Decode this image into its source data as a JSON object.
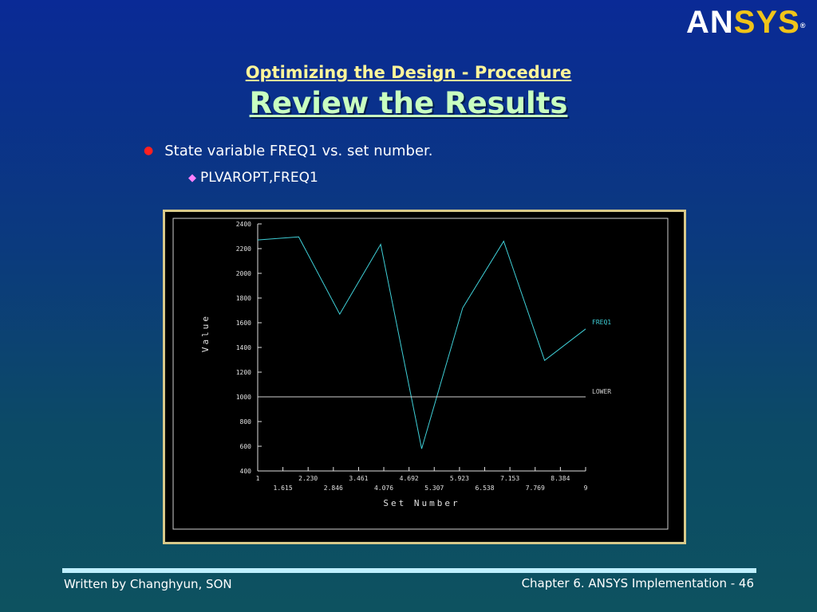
{
  "logo": {
    "part1": "AN",
    "part2": "SYS",
    "reg": "®"
  },
  "slide": {
    "subtitle": "Optimizing the Design - Procedure",
    "title": "Review the Results",
    "bullet1": "State variable FREQ1 vs. set number.",
    "bullet2": "PLVAROPT,FREQ1"
  },
  "footer": {
    "left": "Written by Changhyun, SON",
    "right": "Chapter 6. ANSYS Implementation - 46"
  },
  "colors": {
    "freq1_line": "#3fd0d8",
    "lower_line": "#d0d0d0",
    "axis": "#e0e0e0"
  },
  "chart_data": {
    "type": "line",
    "xlabel": "Set Number",
    "ylabel": "Value",
    "ylim": [
      400,
      2400
    ],
    "xlim": [
      1,
      9
    ],
    "yticks": [
      2400,
      2200,
      2000,
      1800,
      1600,
      1400,
      1200,
      1000,
      800,
      600,
      400
    ],
    "ytick_labels": [
      "2400",
      "2200",
      "2000",
      "1800",
      "1600",
      "1400",
      "1200",
      "1000",
      "800",
      "600",
      "400"
    ],
    "xticks_upper": [
      1,
      2.23,
      3.461,
      4.692,
      5.923,
      7.153,
      8.384
    ],
    "xticks_upper_labels": [
      "1",
      "2.230",
      "3.461",
      "4.692",
      "5.923",
      "7.153",
      "8.384"
    ],
    "xticks_lower": [
      1.615,
      2.846,
      4.076,
      5.307,
      6.538,
      7.769,
      9
    ],
    "xticks_lower_labels": [
      "1.615",
      "2.846",
      "4.076",
      "5.307",
      "6.538",
      "7.769",
      "9"
    ],
    "series": [
      {
        "name": "FREQ1",
        "x": [
          1,
          2,
          3,
          4,
          5,
          6,
          7,
          8,
          9
        ],
        "values": [
          2270,
          2295,
          1670,
          2235,
          580,
          1720,
          2260,
          1295,
          1550
        ]
      },
      {
        "name": "LOWER",
        "x": [
          1,
          9
        ],
        "values": [
          1000,
          1000
        ]
      }
    ]
  }
}
